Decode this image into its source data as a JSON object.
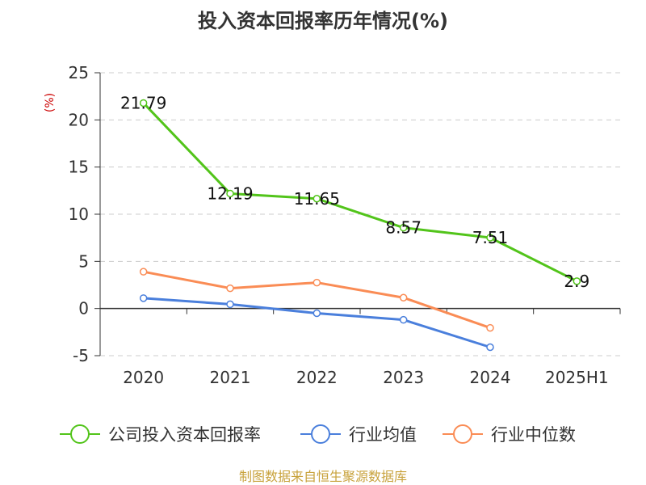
{
  "chart_data": {
    "type": "line",
    "title": "投入资本回报率历年情况(%)",
    "ylabel": "(%)",
    "xlabel": "",
    "categories": [
      "2020",
      "2021",
      "2022",
      "2023",
      "2024",
      "2025H1"
    ],
    "ylim": [
      -5,
      25
    ],
    "yticks": [
      -5,
      0,
      5,
      10,
      15,
      20,
      25
    ],
    "grid": true,
    "legend_position": "bottom",
    "series": [
      {
        "name": "公司投入资本回报率",
        "color": "#52c41a",
        "values": [
          21.79,
          12.19,
          11.65,
          8.57,
          7.51,
          2.9
        ],
        "labels": [
          "21.79",
          "12.19",
          "11.65",
          "8.57",
          "7.51",
          "2.9"
        ]
      },
      {
        "name": "行业均值",
        "color": "#4a7fdc",
        "values": [
          1.1,
          0.45,
          -0.5,
          -1.2,
          -4.1,
          null
        ]
      },
      {
        "name": "行业中位数",
        "color": "#fa8c55",
        "values": [
          3.9,
          2.15,
          2.75,
          1.15,
          -2.05,
          null
        ]
      }
    ]
  },
  "source": "制图数据来自恒生聚源数据库"
}
